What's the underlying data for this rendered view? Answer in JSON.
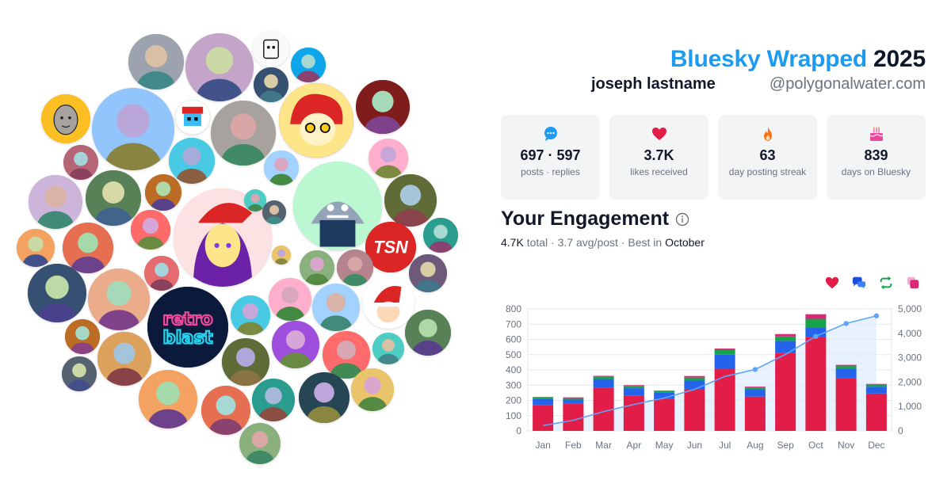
{
  "header": {
    "brand": "Bluesky Wrapped",
    "year": "2025",
    "user_name": "joseph lastname",
    "user_handle": "@polygonalwater.com"
  },
  "stats": [
    {
      "icon": "speech-bubble-icon",
      "value": "697 · 597",
      "label": "posts · replies"
    },
    {
      "icon": "heart-icon",
      "value": "3.7K",
      "label": "likes received"
    },
    {
      "icon": "fire-icon",
      "value": "63",
      "label": "day posting streak"
    },
    {
      "icon": "birthday-cake-icon",
      "value": "839",
      "label": "days on Bluesky"
    }
  ],
  "engagement": {
    "heading": "Your Engagement",
    "total": "4.7K",
    "total_suffix": "total",
    "avg": "3.7 avg/post",
    "best_prefix": "Best in",
    "best_month": "October"
  },
  "legend": [
    {
      "icon": "heart-icon",
      "color": "#e11d48"
    },
    {
      "icon": "reply-icon",
      "color": "#1d4ed8"
    },
    {
      "icon": "repost-icon",
      "color": "#16a34a"
    },
    {
      "icon": "quote-icon",
      "color": "#ec4899"
    }
  ],
  "colors": {
    "accent": "#1d9bf0",
    "likes": "#e11d48",
    "replies": "#2563eb",
    "reposts": "#16a34a",
    "quotes": "#db2777",
    "cumulative": "#60a5fa",
    "card_bg": "#f3f4f6"
  },
  "avatars": [
    {
      "name": "avatar-sepia-portrait",
      "color": "#9ca3af"
    },
    {
      "name": "avatar-pink-portrait",
      "color": "#c4a4c8"
    },
    {
      "name": "avatar-mascot-sketch",
      "color": "#e5e7eb"
    },
    {
      "name": "avatar-headphones-man",
      "color": "#0ea5e9"
    },
    {
      "name": "avatar-cartoon-face",
      "color": "#fbbf24"
    },
    {
      "name": "avatar-woman-glasses",
      "color": "#93c5fd"
    },
    {
      "name": "avatar-pixel-santa",
      "color": "#16a34a"
    },
    {
      "name": "avatar-couple-selfie",
      "color": "#a8a29e"
    },
    {
      "name": "avatar-red-hair-character",
      "color": "#dc2626"
    },
    {
      "name": "avatar-dog-closeup",
      "color": "#7f1d1d"
    },
    {
      "name": "avatar-retro-blast",
      "color": "#0b1a3a"
    },
    {
      "name": "avatar-shark-mascot",
      "color": "#86efac"
    },
    {
      "name": "avatar-anime-girl",
      "color": "#fca5a5"
    },
    {
      "name": "avatar-tsn-logo",
      "color": "#dc2626"
    },
    {
      "name": "avatar-santa-hat-character",
      "color": "#ffffff"
    }
  ],
  "retro_logo_text": [
    "retro",
    "blast"
  ],
  "tsn_logo_text": "TSN",
  "chart_data": {
    "type": "bar",
    "stacked": true,
    "categories": [
      "Jan",
      "Feb",
      "Mar",
      "Apr",
      "May",
      "Jun",
      "Jul",
      "Aug",
      "Sep",
      "Oct",
      "Nov",
      "Dec"
    ],
    "series": [
      {
        "values": [
          170,
          180,
          285,
          230,
          210,
          275,
          405,
          225,
          510,
          615,
          345,
          245
        ]
      },
      {
        "values": [
          40,
          25,
          55,
          50,
          40,
          55,
          95,
          45,
          80,
          65,
          65,
          45
        ]
      },
      {
        "values": [
          8,
          10,
          15,
          15,
          10,
          20,
          30,
          15,
          30,
          55,
          15,
          12
        ]
      },
      {
        "values": [
          4,
          5,
          6,
          5,
          4,
          10,
          10,
          5,
          15,
          30,
          8,
          6
        ]
      }
    ],
    "cumulative": {
      "values": [
        218,
        434,
        791,
        1084,
        1348,
        1701,
        2230,
        2518,
        3137,
        3874,
        4403,
        4716
      ]
    },
    "y_left": {
      "min": 0,
      "max": 800,
      "ticks": [
        0,
        100,
        200,
        300,
        400,
        500,
        600,
        700,
        800
      ]
    },
    "y_right": {
      "min": 0,
      "max": 5000,
      "ticks": [
        "0",
        "1,000",
        "2,000",
        "3,000",
        "4,000",
        "5,000"
      ]
    },
    "grid": true
  }
}
